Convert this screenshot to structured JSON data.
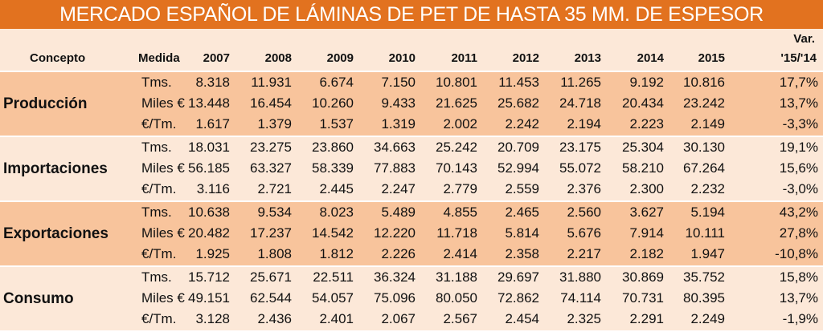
{
  "title": "MERCADO ESPAÑOL DE LÁMINAS DE PET DE HASTA 35 MM. DE ESPESOR",
  "headers": {
    "concepto": "Concepto",
    "medida": "Medida",
    "years": [
      "2007",
      "2008",
      "2009",
      "2010",
      "2011",
      "2012",
      "2013",
      "2014",
      "2015"
    ],
    "var_line1": "Var.",
    "var_line2": "'15/'14"
  },
  "groups": [
    {
      "concept": "Producción",
      "rows": [
        {
          "unit": "Tms.",
          "values": [
            "8.318",
            "11.931",
            "6.674",
            "7.150",
            "10.801",
            "11.453",
            "11.265",
            "9.192",
            "10.816"
          ],
          "var": "17,7%"
        },
        {
          "unit": "Miles €",
          "values": [
            "13.448",
            "16.454",
            "10.260",
            "9.433",
            "21.625",
            "25.682",
            "24.718",
            "20.434",
            "23.242"
          ],
          "var": "13,7%"
        },
        {
          "unit": "€/Tm.",
          "values": [
            "1.617",
            "1.379",
            "1.537",
            "1.319",
            "2.002",
            "2.242",
            "2.194",
            "2.223",
            "2.149"
          ],
          "var": "-3,3%"
        }
      ]
    },
    {
      "concept": "Importaciones",
      "rows": [
        {
          "unit": "Tms.",
          "values": [
            "18.031",
            "23.275",
            "23.860",
            "34.663",
            "25.242",
            "20.709",
            "23.175",
            "25.304",
            "30.130"
          ],
          "var": "19,1%"
        },
        {
          "unit": "Miles €",
          "values": [
            "56.185",
            "63.327",
            "58.339",
            "77.883",
            "70.143",
            "52.994",
            "55.072",
            "58.210",
            "67.264"
          ],
          "var": "15,6%"
        },
        {
          "unit": "€/Tm.",
          "values": [
            "3.116",
            "2.721",
            "2.445",
            "2.247",
            "2.779",
            "2.559",
            "2.376",
            "2.300",
            "2.232"
          ],
          "var": "-3,0%"
        }
      ]
    },
    {
      "concept": "Exportaciones",
      "rows": [
        {
          "unit": "Tms.",
          "values": [
            "10.638",
            "9.534",
            "8.023",
            "5.489",
            "4.855",
            "2.465",
            "2.560",
            "3.627",
            "5.194"
          ],
          "var": "43,2%"
        },
        {
          "unit": "Miles €",
          "values": [
            "20.482",
            "17.237",
            "14.542",
            "12.220",
            "11.718",
            "5.814",
            "5.676",
            "7.914",
            "10.111"
          ],
          "var": "27,8%"
        },
        {
          "unit": "€/Tm.",
          "values": [
            "1.925",
            "1.808",
            "1.812",
            "2.226",
            "2.414",
            "2.358",
            "2.217",
            "2.182",
            "1.947"
          ],
          "var": "-10,8%"
        }
      ]
    },
    {
      "concept": "Consumo",
      "rows": [
        {
          "unit": "Tms.",
          "values": [
            "15.712",
            "25.671",
            "22.511",
            "36.324",
            "31.188",
            "29.697",
            "31.880",
            "30.869",
            "35.752"
          ],
          "var": "15,8%"
        },
        {
          "unit": "Miles €",
          "values": [
            "49.151",
            "62.544",
            "54.057",
            "75.096",
            "80.050",
            "72.862",
            "74.114",
            "70.731",
            "80.395"
          ],
          "var": "13,7%"
        },
        {
          "unit": "€/Tm.",
          "values": [
            "3.128",
            "2.436",
            "2.401",
            "2.067",
            "2.567",
            "2.454",
            "2.325",
            "2.291",
            "2.249"
          ],
          "var": "-1,9%"
        }
      ]
    }
  ]
}
